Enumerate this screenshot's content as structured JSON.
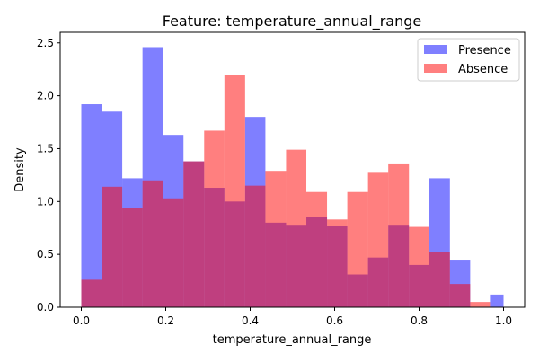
{
  "chart_data": {
    "type": "histogram",
    "title": "Feature: temperature_annual_range",
    "xlabel": "temperature_annual_range",
    "ylabel": "Density",
    "xlim": [
      -0.05,
      1.05
    ],
    "ylim": [
      0,
      2.6
    ],
    "xticks": [
      "0.0",
      "0.2",
      "0.4",
      "0.6",
      "0.8",
      "1.0"
    ],
    "xtick_values": [
      0.0,
      0.2,
      0.4,
      0.6,
      0.8,
      1.0
    ],
    "yticks": [
      "0.0",
      "0.5",
      "1.0",
      "1.5",
      "2.0",
      "2.5"
    ],
    "ytick_values": [
      0.0,
      0.5,
      1.0,
      1.5,
      2.0,
      2.5
    ],
    "legend_position": "top-right",
    "series": [
      {
        "name": "Presence",
        "color": "#0000ff",
        "opacity": 0.5,
        "bins": [
          [
            0.0,
            0.048,
            1.92
          ],
          [
            0.048,
            0.097,
            1.85
          ],
          [
            0.097,
            0.145,
            1.22
          ],
          [
            0.145,
            0.194,
            2.46
          ],
          [
            0.194,
            0.242,
            1.63
          ],
          [
            0.242,
            0.291,
            1.38
          ],
          [
            0.291,
            0.339,
            1.13
          ],
          [
            0.339,
            0.388,
            1.0
          ],
          [
            0.388,
            0.436,
            1.8
          ],
          [
            0.436,
            0.485,
            0.8
          ],
          [
            0.485,
            0.533,
            0.78
          ],
          [
            0.533,
            0.582,
            0.85
          ],
          [
            0.582,
            0.63,
            0.77
          ],
          [
            0.63,
            0.679,
            0.31
          ],
          [
            0.679,
            0.727,
            0.47
          ],
          [
            0.727,
            0.776,
            0.78
          ],
          [
            0.776,
            0.824,
            0.4
          ],
          [
            0.824,
            0.873,
            1.22
          ],
          [
            0.873,
            0.921,
            0.45
          ],
          [
            0.921,
            0.97,
            0.0
          ],
          [
            0.97,
            1.0,
            0.12
          ]
        ]
      },
      {
        "name": "Absence",
        "color": "#ff0000",
        "opacity": 0.5,
        "bins": [
          [
            0.0,
            0.048,
            0.26
          ],
          [
            0.048,
            0.097,
            1.14
          ],
          [
            0.097,
            0.145,
            0.94
          ],
          [
            0.145,
            0.194,
            1.2
          ],
          [
            0.194,
            0.242,
            1.03
          ],
          [
            0.242,
            0.291,
            1.38
          ],
          [
            0.291,
            0.339,
            1.67
          ],
          [
            0.339,
            0.388,
            2.2
          ],
          [
            0.388,
            0.436,
            1.15
          ],
          [
            0.436,
            0.485,
            1.29
          ],
          [
            0.485,
            0.533,
            1.49
          ],
          [
            0.533,
            0.582,
            1.09
          ],
          [
            0.582,
            0.63,
            0.83
          ],
          [
            0.63,
            0.679,
            1.09
          ],
          [
            0.679,
            0.727,
            1.28
          ],
          [
            0.727,
            0.776,
            1.36
          ],
          [
            0.776,
            0.824,
            0.76
          ],
          [
            0.824,
            0.873,
            0.52
          ],
          [
            0.873,
            0.921,
            0.22
          ],
          [
            0.921,
            0.97,
            0.05
          ],
          [
            0.97,
            1.0,
            0.0
          ]
        ]
      }
    ]
  }
}
